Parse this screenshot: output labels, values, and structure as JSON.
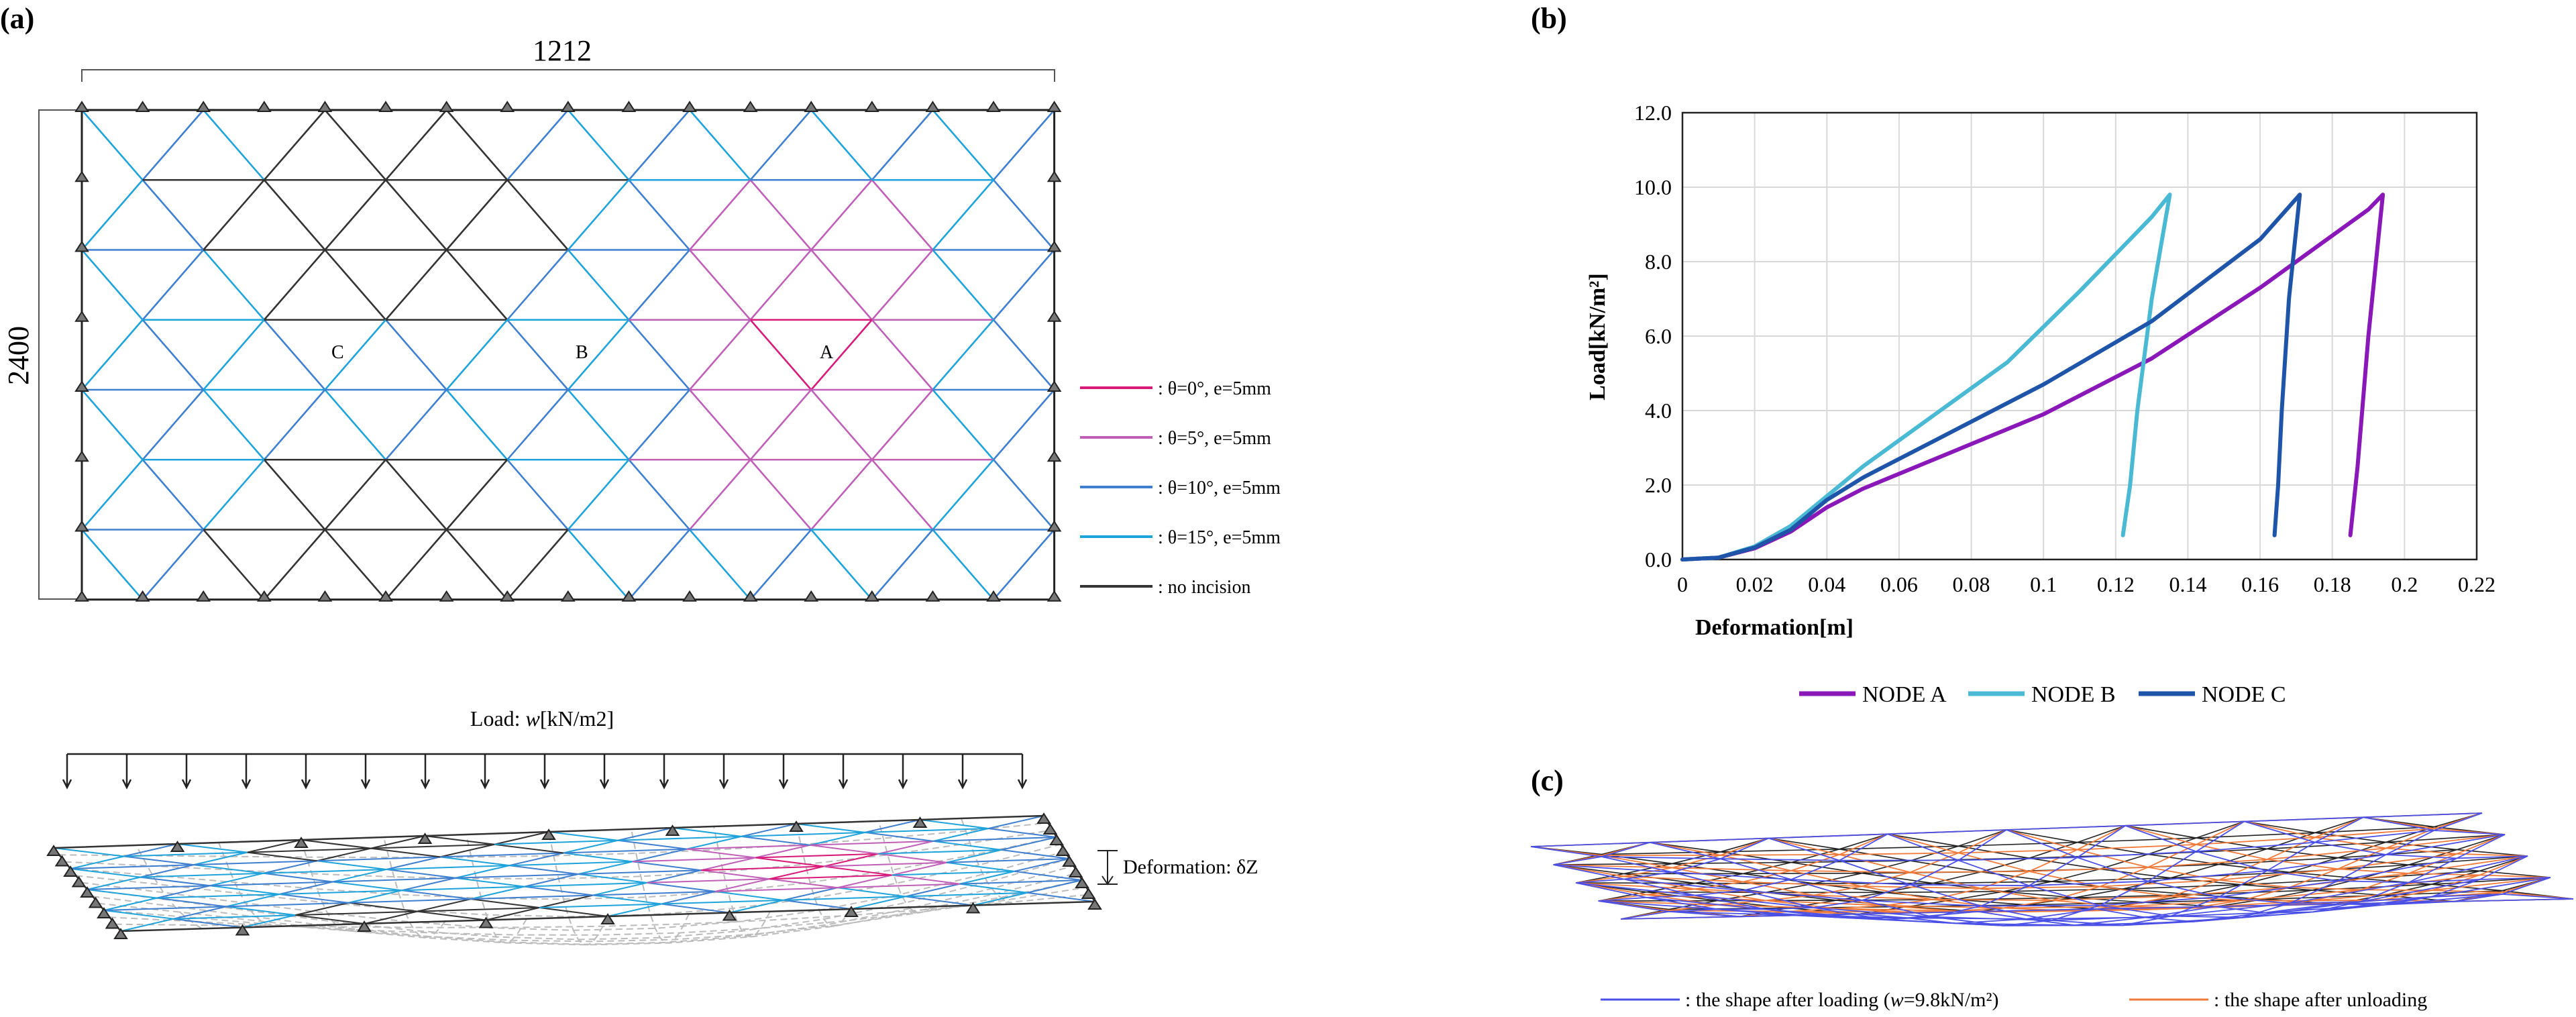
{
  "panels": {
    "a": {
      "label": "(a)",
      "plan": {
        "width_label": "1212",
        "height_label": "2400",
        "nodes": [
          "A",
          "B",
          "C"
        ],
        "legend": [
          {
            "label": ": θ=0°, e=5mm",
            "color": "#d81b7a"
          },
          {
            "label": ": θ=5°, e=5mm",
            "color": "#c05fb8"
          },
          {
            "label": ": θ=10°, e=5mm",
            "color": "#3f7fd0"
          },
          {
            "label": ": θ=15°, e=5mm",
            "color": "#1ea3db"
          },
          {
            "label": ": no incision",
            "color": "#333333"
          }
        ]
      },
      "iso": {
        "load_prefix": "Load: ",
        "load_var": "w",
        "load_unit": "[kN/m2]",
        "deformation_label": "Deformation: δZ"
      }
    },
    "b": {
      "label": "(b)",
      "chart_data": {
        "type": "line",
        "xlabel": "Deformation[m]",
        "ylabel": "Load[kN/m²]",
        "xlim": [
          0,
          0.22
        ],
        "ylim": [
          0,
          12
        ],
        "xticks": [
          "0",
          "0.02",
          "0.04",
          "0.06",
          "0.08",
          "0.1",
          "0.12",
          "0.14",
          "0.16",
          "0.18",
          "0.2",
          "0.22"
        ],
        "yticks": [
          "0.0",
          "2.0",
          "4.0",
          "6.0",
          "8.0",
          "10.0",
          "12.0"
        ],
        "grid": true,
        "legend_position": "bottom",
        "series": [
          {
            "name": "NODE A",
            "color": "#8a17b8",
            "x": [
              0,
              0.01,
              0.02,
              0.03,
              0.04,
              0.05,
              0.07,
              0.1,
              0.13,
              0.16,
              0.19,
              0.194,
              0.19,
              0.187,
              0.185
            ],
            "y": [
              0,
              0.05,
              0.3,
              0.75,
              1.4,
              1.9,
              2.7,
              3.9,
              5.4,
              7.3,
              9.4,
              9.8,
              6.0,
              2.5,
              0.65
            ]
          },
          {
            "name": "NODE B",
            "color": "#4ab9d4",
            "x": [
              0,
              0.01,
              0.02,
              0.03,
              0.04,
              0.05,
              0.07,
              0.09,
              0.11,
              0.13,
              0.135,
              0.13,
              0.126,
              0.124,
              0.122
            ],
            "y": [
              0,
              0.05,
              0.35,
              0.9,
              1.7,
              2.5,
              3.9,
              5.3,
              7.2,
              9.2,
              9.8,
              7.0,
              4.0,
              2.0,
              0.65
            ]
          },
          {
            "name": "NODE C",
            "color": "#1f55a8",
            "x": [
              0,
              0.01,
              0.02,
              0.03,
              0.04,
              0.05,
              0.07,
              0.1,
              0.13,
              0.16,
              0.171,
              0.168,
              0.166,
              0.165,
              0.164
            ],
            "y": [
              0,
              0.05,
              0.32,
              0.8,
              1.6,
              2.2,
              3.2,
              4.7,
              6.4,
              8.6,
              9.8,
              7.0,
              4.0,
              2.0,
              0.65
            ]
          }
        ]
      }
    },
    "c": {
      "label": "(c)",
      "legend": [
        {
          "text": ": the shape after loading (",
          "var": "w",
          "value": "=9.8kN/m²)",
          "color": "#4a50e6"
        },
        {
          "text": ": the shape after unloading",
          "var": "",
          "value": "",
          "color": "#f07a3a"
        }
      ]
    }
  }
}
